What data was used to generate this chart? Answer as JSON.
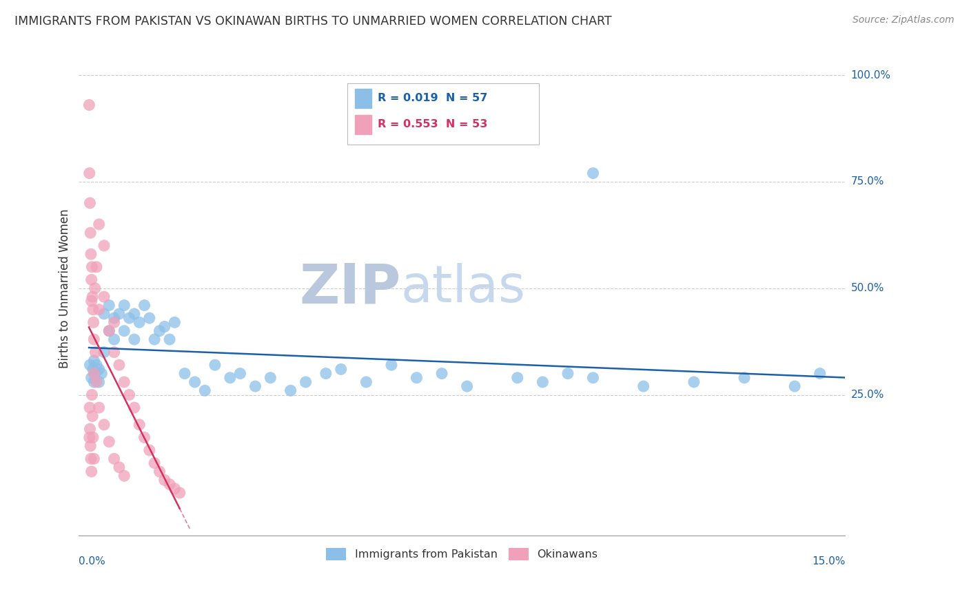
{
  "title": "IMMIGRANTS FROM PAKISTAN VS OKINAWAN BIRTHS TO UNMARRIED WOMEN CORRELATION CHART",
  "source": "Source: ZipAtlas.com",
  "ylabel": "Births to Unmarried Women",
  "legend1_label": "Immigrants from Pakistan",
  "legend2_label": "Okinawans",
  "R1": "0.019",
  "N1": "57",
  "R2": "0.553",
  "N2": "53",
  "color_blue": "#8bbfe8",
  "color_pink": "#f0a0b8",
  "color_trendline_blue": "#1a5faa",
  "color_trendline_pink": "#d63060",
  "watermark_zip": "ZIP",
  "watermark_atlas": "atlas",
  "watermark_color_zip": "#c8d4e8",
  "watermark_color_atlas": "#c0cce0",
  "bg_color": "#ffffff",
  "xlim_min": 0.0,
  "xlim_max": 0.15,
  "ylim_min": -0.08,
  "ylim_max": 1.08,
  "ytick_vals": [
    0.25,
    0.5,
    0.75,
    1.0
  ],
  "ytick_labels": [
    "25.0%",
    "50.0%",
    "75.0%",
    "100.0%"
  ],
  "blue_x": [
    0.0002,
    0.0005,
    0.0008,
    0.001,
    0.001,
    0.0012,
    0.0015,
    0.002,
    0.002,
    0.0025,
    0.003,
    0.003,
    0.004,
    0.004,
    0.005,
    0.005,
    0.006,
    0.007,
    0.007,
    0.008,
    0.009,
    0.009,
    0.01,
    0.011,
    0.012,
    0.013,
    0.014,
    0.015,
    0.016,
    0.017,
    0.019,
    0.021,
    0.023,
    0.025,
    0.028,
    0.03,
    0.033,
    0.036,
    0.04,
    0.043,
    0.047,
    0.05,
    0.055,
    0.06,
    0.065,
    0.07,
    0.075,
    0.085,
    0.09,
    0.095,
    0.1,
    0.11,
    0.12,
    0.13,
    0.14,
    0.145,
    0.1
  ],
  "blue_y": [
    0.32,
    0.29,
    0.31,
    0.28,
    0.33,
    0.3,
    0.32,
    0.28,
    0.31,
    0.3,
    0.44,
    0.35,
    0.4,
    0.46,
    0.43,
    0.38,
    0.44,
    0.4,
    0.46,
    0.43,
    0.38,
    0.44,
    0.42,
    0.46,
    0.43,
    0.38,
    0.4,
    0.41,
    0.38,
    0.42,
    0.3,
    0.28,
    0.26,
    0.32,
    0.29,
    0.3,
    0.27,
    0.29,
    0.26,
    0.28,
    0.3,
    0.31,
    0.28,
    0.32,
    0.29,
    0.3,
    0.27,
    0.29,
    0.28,
    0.3,
    0.29,
    0.27,
    0.28,
    0.29,
    0.27,
    0.3,
    0.77
  ],
  "pink_x": [
    5e-05,
    0.0001,
    0.0001,
    0.00015,
    0.0002,
    0.0002,
    0.0003,
    0.0003,
    0.0004,
    0.0004,
    0.0005,
    0.0005,
    0.0005,
    0.0006,
    0.0006,
    0.0007,
    0.0007,
    0.0008,
    0.0008,
    0.0009,
    0.001,
    0.001,
    0.001,
    0.0012,
    0.0013,
    0.0015,
    0.0015,
    0.002,
    0.002,
    0.003,
    0.003,
    0.004,
    0.004,
    0.005,
    0.005,
    0.006,
    0.006,
    0.007,
    0.007,
    0.008,
    0.009,
    0.01,
    0.011,
    0.012,
    0.013,
    0.014,
    0.015,
    0.016,
    0.017,
    0.018,
    0.002,
    0.003,
    0.005
  ],
  "pink_y": [
    0.93,
    0.15,
    0.77,
    0.22,
    0.7,
    0.17,
    0.63,
    0.13,
    0.58,
    0.1,
    0.52,
    0.47,
    0.07,
    0.55,
    0.25,
    0.48,
    0.2,
    0.45,
    0.15,
    0.42,
    0.38,
    0.3,
    0.1,
    0.5,
    0.35,
    0.55,
    0.28,
    0.45,
    0.22,
    0.48,
    0.18,
    0.4,
    0.14,
    0.35,
    0.1,
    0.32,
    0.08,
    0.28,
    0.06,
    0.25,
    0.22,
    0.18,
    0.15,
    0.12,
    0.09,
    0.07,
    0.05,
    0.04,
    0.03,
    0.02,
    0.65,
    0.6,
    0.42
  ]
}
